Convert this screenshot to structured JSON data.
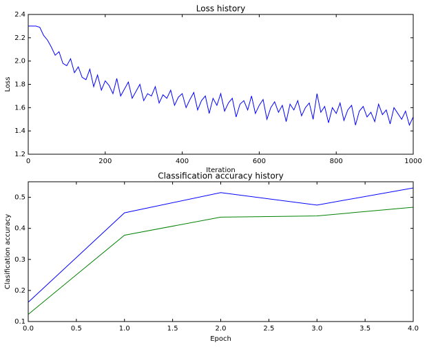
{
  "chart_data": [
    {
      "type": "line",
      "title": "Loss history",
      "x_label": "Iteration",
      "y_label": "Loss",
      "x": [
        0,
        10,
        20,
        30,
        40,
        50,
        60,
        70,
        80,
        90,
        100,
        110,
        120,
        130,
        140,
        150,
        160,
        170,
        180,
        190,
        200,
        210,
        220,
        230,
        240,
        250,
        260,
        270,
        280,
        290,
        300,
        310,
        320,
        330,
        340,
        350,
        360,
        370,
        380,
        390,
        400,
        410,
        420,
        430,
        440,
        450,
        460,
        470,
        480,
        490,
        500,
        510,
        520,
        530,
        540,
        550,
        560,
        570,
        580,
        590,
        600,
        610,
        620,
        630,
        640,
        650,
        660,
        670,
        680,
        690,
        700,
        710,
        720,
        730,
        740,
        750,
        760,
        770,
        780,
        790,
        800,
        810,
        820,
        830,
        840,
        850,
        860,
        870,
        880,
        890,
        900,
        910,
        920,
        930,
        940,
        950,
        960,
        970,
        980,
        990,
        1000
      ],
      "series": [
        {
          "color": "#0000ff",
          "values": [
            2.3,
            2.3,
            2.3,
            2.29,
            2.22,
            2.18,
            2.12,
            2.05,
            2.08,
            1.98,
            1.96,
            2.02,
            1.9,
            1.95,
            1.86,
            1.84,
            1.93,
            1.78,
            1.88,
            1.75,
            1.83,
            1.79,
            1.72,
            1.85,
            1.7,
            1.76,
            1.82,
            1.68,
            1.74,
            1.8,
            1.66,
            1.72,
            1.7,
            1.78,
            1.64,
            1.71,
            1.68,
            1.75,
            1.62,
            1.69,
            1.72,
            1.6,
            1.67,
            1.73,
            1.58,
            1.66,
            1.7,
            1.55,
            1.68,
            1.62,
            1.72,
            1.57,
            1.64,
            1.68,
            1.52,
            1.63,
            1.66,
            1.58,
            1.7,
            1.55,
            1.62,
            1.67,
            1.5,
            1.6,
            1.65,
            1.56,
            1.62,
            1.48,
            1.63,
            1.58,
            1.66,
            1.53,
            1.6,
            1.64,
            1.5,
            1.72,
            1.56,
            1.61,
            1.47,
            1.6,
            1.55,
            1.64,
            1.49,
            1.58,
            1.62,
            1.45,
            1.57,
            1.61,
            1.52,
            1.56,
            1.48,
            1.63,
            1.54,
            1.58,
            1.46,
            1.6,
            1.55,
            1.5,
            1.57,
            1.45,
            1.52
          ]
        }
      ],
      "xlim": [
        0,
        1000
      ],
      "xticks": [
        0,
        200,
        400,
        600,
        800,
        1000
      ],
      "ylim": [
        1.2,
        2.4
      ],
      "yticks": [
        1.2,
        1.4,
        1.6,
        1.8,
        {
          "value": 2,
          "label": "2.0"
        },
        2.2,
        2.4
      ],
      "grid": false
    },
    {
      "type": "line",
      "title": "Classification accuracy history",
      "x_label": "Epoch",
      "y_label": "Clasification accuracy",
      "x": [
        0,
        1,
        2,
        3,
        4
      ],
      "series": [
        {
          "color": "#0000ff",
          "values": [
            0.162,
            0.45,
            0.515,
            0.475,
            0.53
          ]
        },
        {
          "color": "#008000",
          "values": [
            0.123,
            0.378,
            0.436,
            0.44,
            0.468
          ]
        }
      ],
      "xlim": [
        0,
        4
      ],
      "xticks": [
        {
          "value": 0,
          "label": "0.0"
        },
        0.5,
        {
          "value": 1,
          "label": "1.0"
        },
        1.5,
        {
          "value": 2,
          "label": "2.0"
        },
        2.5,
        {
          "value": 3,
          "label": "3.0"
        },
        3.5,
        {
          "value": 4,
          "label": "4.0"
        }
      ],
      "ylim": [
        0.1,
        0.55
      ],
      "yticks": [
        0.1,
        0.2,
        0.3,
        0.4,
        0.5
      ],
      "grid": false
    }
  ]
}
